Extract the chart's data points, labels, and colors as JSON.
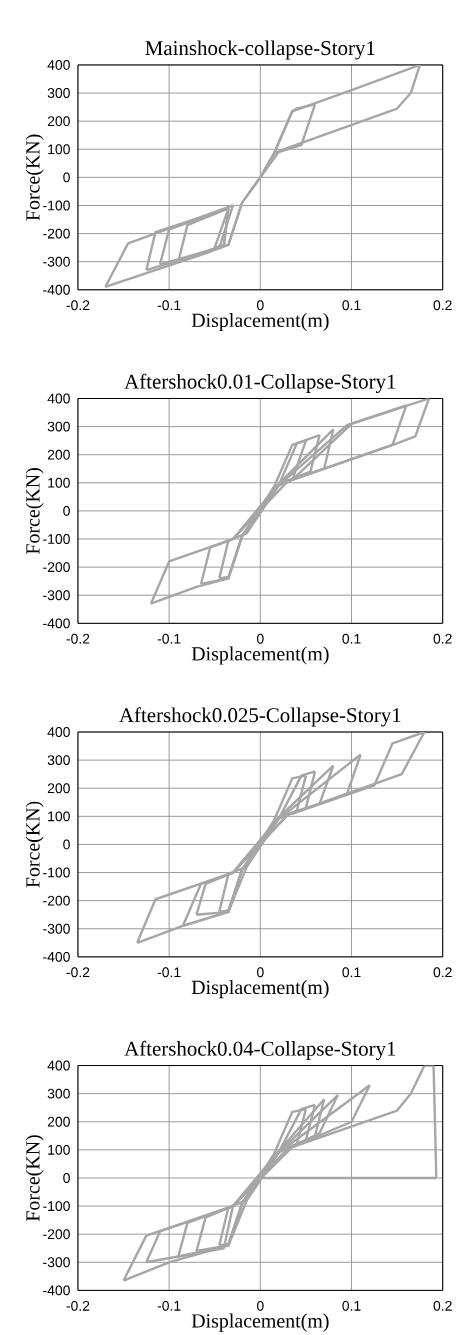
{
  "chart_data": [
    {
      "type": "line",
      "title": "Mainshock-collapse-Story1",
      "xlabel": "Displacement(m)",
      "ylabel": "Force(KN)",
      "xlim": [
        -0.2,
        0.2
      ],
      "ylim": [
        -400,
        400
      ],
      "xticks": [
        -0.2,
        -0.1,
        0,
        0.1,
        0.2
      ],
      "yticks": [
        -400,
        -300,
        -200,
        -100,
        0,
        100,
        200,
        300,
        400
      ],
      "grid": true,
      "series": [
        {
          "color": "#a6a6a6",
          "x": [
            0,
            0.015,
            0.035,
            0.04,
            0.06
          ],
          "values": [
            0,
            85,
            235,
            245,
            260
          ]
        },
        {
          "color": "#a6a6a6",
          "x": [
            0.06,
            0.045,
            0.02,
            0,
            -0.02,
            -0.035,
            -0.05
          ],
          "values": [
            260,
            115,
            90,
            0,
            -90,
            -240,
            -250
          ]
        },
        {
          "color": "#a6a6a6",
          "x": [
            -0.05,
            -0.035
          ],
          "values": [
            -250,
            -110
          ]
        },
        {
          "color": "#a6a6a6",
          "x": [
            -0.035,
            -0.08,
            -0.09
          ],
          "values": [
            -110,
            -170,
            -300
          ]
        },
        {
          "color": "#a6a6a6",
          "x": [
            -0.09,
            -0.04,
            -0.035
          ],
          "values": [
            -300,
            -240,
            -110
          ]
        },
        {
          "color": "#a6a6a6",
          "x": [
            -0.035,
            -0.1,
            -0.11
          ],
          "values": [
            -110,
            -185,
            -310
          ]
        },
        {
          "color": "#a6a6a6",
          "x": [
            -0.11,
            -0.04,
            -0.035
          ],
          "values": [
            -310,
            -245,
            -110
          ]
        },
        {
          "color": "#a6a6a6",
          "x": [
            -0.035,
            -0.115,
            -0.125
          ],
          "values": [
            -110,
            -195,
            -330
          ]
        },
        {
          "color": "#a6a6a6",
          "x": [
            -0.125,
            -0.045,
            -0.03
          ],
          "values": [
            -330,
            -250,
            -100
          ]
        },
        {
          "color": "#a6a6a6",
          "x": [
            -0.03,
            -0.145,
            -0.17
          ],
          "values": [
            -100,
            -235,
            -390
          ]
        },
        {
          "color": "#a6a6a6",
          "x": [
            -0.17,
            -0.06,
            -0.035,
            -0.02,
            0,
            0.015,
            0.035,
            0.1,
            0.175
          ],
          "values": [
            -390,
            -270,
            -240,
            -90,
            0,
            85,
            235,
            310,
            400
          ]
        },
        {
          "color": "#a6a6a6",
          "x": [
            0.175,
            0.165,
            0.15,
            0.03,
            0.015,
            0
          ],
          "values": [
            400,
            300,
            245,
            105,
            85,
            0
          ]
        }
      ]
    },
    {
      "type": "line",
      "title": "Aftershock0.01-Collapse-Story1",
      "xlabel": "Displacement(m)",
      "ylabel": "Force(KN)",
      "xlim": [
        -0.2,
        0.2
      ],
      "ylim": [
        -400,
        400
      ],
      "xticks": [
        -0.2,
        -0.1,
        0,
        0.1,
        0.2
      ],
      "yticks": [
        -400,
        -300,
        -200,
        -100,
        0,
        100,
        200,
        300,
        400
      ],
      "grid": true,
      "series": [
        {
          "color": "#a6a6a6",
          "x": [
            0,
            0.015,
            0.035,
            0.05
          ],
          "values": [
            0,
            85,
            235,
            250
          ]
        },
        {
          "color": "#a6a6a6",
          "x": [
            0.05,
            0.035,
            0.015,
            -0.02,
            -0.035,
            -0.045
          ],
          "values": [
            250,
            110,
            85,
            -90,
            -235,
            -240
          ]
        },
        {
          "color": "#a6a6a6",
          "x": [
            -0.045,
            -0.035,
            -0.015,
            0.02,
            0.04,
            0.065
          ],
          "values": [
            -240,
            -105,
            -80,
            90,
            240,
            270
          ]
        },
        {
          "color": "#a6a6a6",
          "x": [
            0.065,
            0.055,
            0.02,
            -0.03,
            -0.055,
            -0.065
          ],
          "values": [
            270,
            140,
            95,
            -100,
            -130,
            -260
          ]
        },
        {
          "color": "#a6a6a6",
          "x": [
            -0.065,
            -0.035,
            -0.02,
            0.02,
            0.08
          ],
          "values": [
            -260,
            -240,
            -90,
            95,
            290
          ]
        },
        {
          "color": "#a6a6a6",
          "x": [
            0.08,
            0.07,
            0.03,
            -0.03,
            -0.1,
            -0.12
          ],
          "values": [
            290,
            150,
            105,
            -100,
            -180,
            -330
          ]
        },
        {
          "color": "#a6a6a6",
          "x": [
            -0.12,
            -0.07,
            -0.035,
            -0.02,
            0.02,
            0.095,
            0.16
          ],
          "values": [
            -330,
            -270,
            -240,
            -90,
            90,
            305,
            375
          ]
        },
        {
          "color": "#a6a6a6",
          "x": [
            0.16,
            0.145,
            0.035
          ],
          "values": [
            375,
            235,
            110
          ]
        },
        {
          "color": "#a6a6a6",
          "x": [
            0.035,
            0.1,
            0.185
          ],
          "values": [
            110,
            310,
            400
          ]
        },
        {
          "color": "#a6a6a6",
          "x": [
            0.185,
            0.17,
            0.15,
            0.03,
            0.015,
            0
          ],
          "values": [
            400,
            265,
            240,
            105,
            85,
            0
          ]
        }
      ]
    },
    {
      "type": "line",
      "title": "Aftershock0.025-Collapse-Story1",
      "xlabel": "Displacement(m)",
      "ylabel": "Force(KN)",
      "xlim": [
        -0.2,
        0.2
      ],
      "ylim": [
        -400,
        400
      ],
      "xticks": [
        -0.2,
        -0.1,
        0,
        0.1,
        0.2
      ],
      "yticks": [
        -400,
        -300,
        -200,
        -100,
        0,
        100,
        200,
        300,
        400
      ],
      "grid": true,
      "series": [
        {
          "color": "#a6a6a6",
          "x": [
            -0.135,
            -0.085,
            -0.035,
            -0.015,
            0,
            0.015,
            0.035,
            0.05
          ],
          "values": [
            -350,
            -290,
            -240,
            -80,
            0,
            85,
            235,
            245
          ]
        },
        {
          "color": "#a6a6a6",
          "x": [
            0.05,
            0.04,
            0.015,
            -0.02,
            -0.035,
            -0.045
          ],
          "values": [
            245,
            120,
            85,
            -90,
            -235,
            -240
          ]
        },
        {
          "color": "#a6a6a6",
          "x": [
            -0.045,
            -0.035,
            -0.015,
            0.02,
            0.045,
            0.06
          ],
          "values": [
            -240,
            -105,
            -80,
            90,
            245,
            260
          ]
        },
        {
          "color": "#a6a6a6",
          "x": [
            0.06,
            0.05,
            0.02,
            -0.03,
            -0.06,
            -0.07
          ],
          "values": [
            260,
            130,
            95,
            -100,
            -140,
            -250
          ]
        },
        {
          "color": "#a6a6a6",
          "x": [
            -0.07,
            -0.035,
            -0.02,
            0.02,
            0.08
          ],
          "values": [
            -250,
            -240,
            -90,
            95,
            280
          ]
        },
        {
          "color": "#a6a6a6",
          "x": [
            0.08,
            0.065,
            0.03,
            -0.03,
            -0.065,
            -0.085
          ],
          "values": [
            280,
            145,
            105,
            -100,
            -140,
            -290
          ]
        },
        {
          "color": "#a6a6a6",
          "x": [
            -0.085,
            -0.035,
            -0.02,
            0.02,
            0.11
          ],
          "values": [
            -290,
            -240,
            -90,
            90,
            320
          ]
        },
        {
          "color": "#a6a6a6",
          "x": [
            0.11,
            0.095,
            0.035
          ],
          "values": [
            320,
            180,
            110
          ]
        },
        {
          "color": "#a6a6a6",
          "x": [
            0.035,
            0.125,
            0.145,
            0.18
          ],
          "values": [
            110,
            210,
            360,
            400
          ]
        },
        {
          "color": "#a6a6a6",
          "x": [
            0.18,
            0.155,
            0.03,
            -0.03,
            -0.115,
            -0.135
          ],
          "values": [
            400,
            250,
            105,
            -100,
            -195,
            -350
          ]
        }
      ]
    },
    {
      "type": "line",
      "title": "Aftershock0.04-Collapse-Story1",
      "xlabel": "Displacement(m)",
      "ylabel": "Force(KN)",
      "xlim": [
        -0.2,
        0.2
      ],
      "ylim": [
        -400,
        400
      ],
      "xticks": [
        -0.2,
        -0.1,
        0,
        0.1,
        0.2
      ],
      "yticks": [
        -400,
        -300,
        -200,
        -100,
        0,
        100,
        200,
        300,
        400
      ],
      "grid": true,
      "series": [
        {
          "color": "#a6a6a6",
          "x": [
            0,
            0.015,
            0.035,
            0.05
          ],
          "values": [
            0,
            85,
            235,
            245
          ]
        },
        {
          "color": "#a6a6a6",
          "x": [
            0.05,
            0.04,
            0.015,
            -0.02,
            -0.035,
            -0.045
          ],
          "values": [
            245,
            120,
            85,
            -90,
            -235,
            -240
          ]
        },
        {
          "color": "#a6a6a6",
          "x": [
            -0.045,
            -0.035,
            -0.015,
            0.02,
            0.045,
            0.06
          ],
          "values": [
            -240,
            -105,
            -80,
            90,
            245,
            260
          ]
        },
        {
          "color": "#a6a6a6",
          "x": [
            0.06,
            0.05,
            0.02,
            -0.03,
            -0.06,
            -0.07
          ],
          "values": [
            260,
            135,
            95,
            -100,
            -140,
            -260
          ]
        },
        {
          "color": "#a6a6a6",
          "x": [
            -0.07,
            -0.035,
            -0.02,
            0.02,
            0.07
          ],
          "values": [
            -260,
            -240,
            -90,
            95,
            280
          ]
        },
        {
          "color": "#a6a6a6",
          "x": [
            0.07,
            0.06,
            0.03,
            -0.03,
            -0.08,
            -0.09
          ],
          "values": [
            280,
            150,
            105,
            -100,
            -160,
            -280
          ]
        },
        {
          "color": "#a6a6a6",
          "x": [
            -0.09,
            -0.035,
            -0.02,
            0.02,
            0.085
          ],
          "values": [
            -280,
            -240,
            -90,
            90,
            295
          ]
        },
        {
          "color": "#a6a6a6",
          "x": [
            0.085,
            0.065,
            0.035,
            -0.03,
            -0.11,
            -0.125
          ],
          "values": [
            295,
            160,
            110,
            -100,
            -190,
            -300
          ]
        },
        {
          "color": "#a6a6a6",
          "x": [
            -0.125,
            -0.04,
            -0.03
          ],
          "values": [
            -300,
            -250,
            -100
          ]
        },
        {
          "color": "#a6a6a6",
          "x": [
            -0.03,
            -0.125,
            -0.15
          ],
          "values": [
            -100,
            -205,
            -365
          ]
        },
        {
          "color": "#a6a6a6",
          "x": [
            -0.15,
            -0.1,
            -0.035,
            -0.015,
            0.02,
            0.12
          ],
          "values": [
            -365,
            -300,
            -240,
            -80,
            90,
            330
          ]
        },
        {
          "color": "#a6a6a6",
          "x": [
            0.12,
            0.1,
            0.035
          ],
          "values": [
            330,
            200,
            110
          ]
        },
        {
          "color": "#a6a6a6",
          "x": [
            0.035,
            0.15,
            0.165,
            0.18,
            0.19,
            0.193
          ],
          "values": [
            110,
            240,
            300,
            400,
            400,
            0
          ]
        },
        {
          "color": "#a6a6a6",
          "x": [
            0.193,
            0
          ],
          "values": [
            0,
            0
          ]
        }
      ]
    }
  ]
}
